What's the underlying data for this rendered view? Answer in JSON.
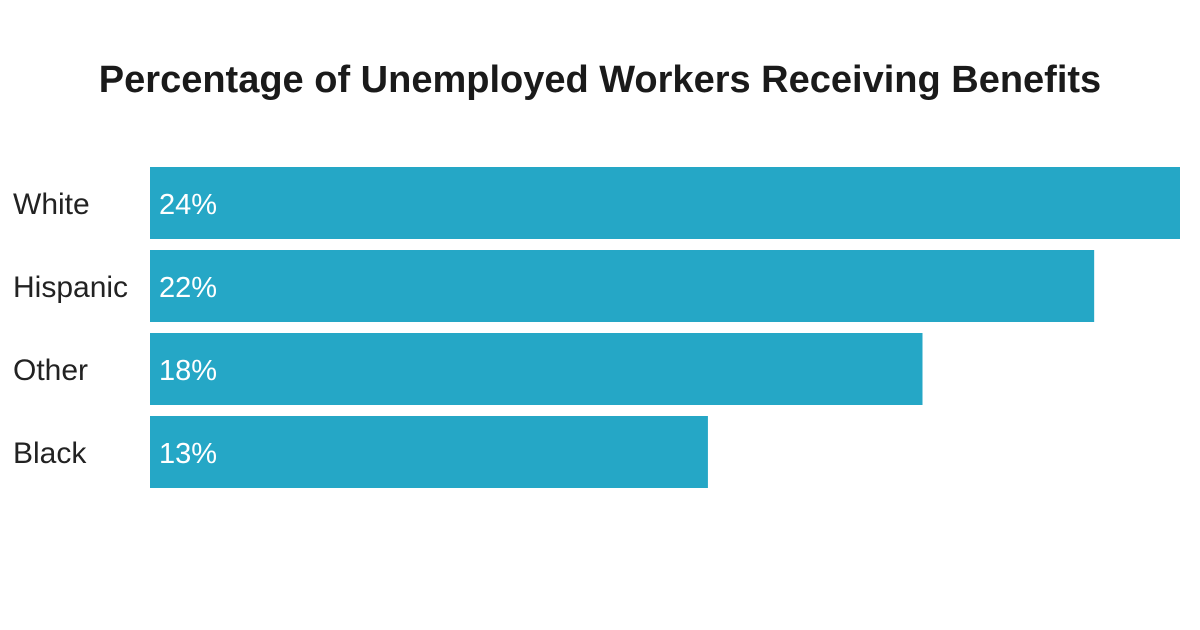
{
  "chart_data": {
    "type": "bar",
    "orientation": "horizontal",
    "title": "Percentage of Unemployed Workers Receiving Benefits",
    "categories": [
      "White",
      "Hispanic",
      "Other",
      "Black"
    ],
    "values": [
      24,
      22,
      18,
      13
    ],
    "value_labels": [
      "24%",
      "22%",
      "18%",
      "13%"
    ],
    "xlim": [
      0,
      24
    ],
    "grid": false,
    "legend": "none",
    "bar_color": "#25a7c6"
  }
}
